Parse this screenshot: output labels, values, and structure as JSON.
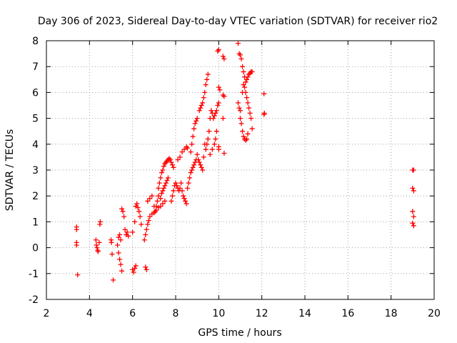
{
  "chart_data": {
    "type": "scatter",
    "title": "Day 306 of 2023, Sidereal Day-to-day VTEC variation (SDTVAR) for receiver rio2",
    "xlabel": "GPS time / hours",
    "ylabel": "SDTVAR / TECUs",
    "xlim": [
      2,
      20
    ],
    "ylim": [
      -2,
      8
    ],
    "xticks": [
      "2",
      "4",
      "6",
      "8",
      "10",
      "12",
      "14",
      "16",
      "18",
      "20"
    ],
    "yticks": [
      "-2",
      "-1",
      "0",
      "1",
      "2",
      "3",
      "4",
      "5",
      "6",
      "7",
      "8"
    ],
    "grid": true,
    "marker": "plus",
    "color": "#ff0000",
    "series": [
      {
        "name": "SDTVAR",
        "points": [
          [
            3.4,
            0.8
          ],
          [
            3.4,
            0.7
          ],
          [
            3.4,
            0.2
          ],
          [
            3.4,
            0.1
          ],
          [
            3.45,
            -1.05
          ],
          [
            4.3,
            0.3
          ],
          [
            4.32,
            0.1
          ],
          [
            4.35,
            0.0
          ],
          [
            4.38,
            -0.1
          ],
          [
            4.4,
            -0.15
          ],
          [
            4.45,
            0.2
          ],
          [
            4.48,
            0.9
          ],
          [
            4.5,
            1.0
          ],
          [
            5.0,
            0.3
          ],
          [
            5.02,
            0.2
          ],
          [
            5.05,
            -0.25
          ],
          [
            5.1,
            -1.25
          ],
          [
            5.3,
            0.1
          ],
          [
            5.35,
            -0.2
          ],
          [
            5.4,
            -0.45
          ],
          [
            5.45,
            -0.65
          ],
          [
            5.5,
            -0.9
          ],
          [
            5.35,
            0.4
          ],
          [
            5.4,
            0.5
          ],
          [
            5.45,
            0.3
          ],
          [
            5.5,
            1.5
          ],
          [
            5.55,
            1.4
          ],
          [
            5.6,
            1.2
          ],
          [
            5.65,
            0.7
          ],
          [
            5.7,
            0.5
          ],
          [
            5.75,
            0.6
          ],
          [
            5.8,
            0.45
          ],
          [
            6.0,
            -0.85
          ],
          [
            6.05,
            -0.95
          ],
          [
            6.1,
            -0.8
          ],
          [
            6.15,
            -0.7
          ],
          [
            6.0,
            0.6
          ],
          [
            6.1,
            1.0
          ],
          [
            6.15,
            1.6
          ],
          [
            6.2,
            1.7
          ],
          [
            6.25,
            1.55
          ],
          [
            6.3,
            1.4
          ],
          [
            6.35,
            1.2
          ],
          [
            6.4,
            0.9
          ],
          [
            6.6,
            -0.75
          ],
          [
            6.65,
            -0.85
          ],
          [
            6.55,
            0.3
          ],
          [
            6.6,
            0.5
          ],
          [
            6.65,
            0.7
          ],
          [
            6.7,
            0.9
          ],
          [
            6.75,
            1.05
          ],
          [
            6.7,
            1.8
          ],
          [
            6.8,
            1.9
          ],
          [
            6.9,
            2.0
          ],
          [
            7.0,
            1.6
          ],
          [
            7.05,
            1.4
          ],
          [
            7.1,
            1.6
          ],
          [
            7.15,
            1.8
          ],
          [
            7.2,
            2.0
          ],
          [
            6.8,
            1.2
          ],
          [
            6.9,
            1.3
          ],
          [
            7.0,
            1.35
          ],
          [
            7.1,
            1.45
          ],
          [
            7.2,
            1.55
          ],
          [
            7.3,
            1.6
          ],
          [
            7.4,
            1.7
          ],
          [
            7.5,
            1.8
          ],
          [
            7.2,
            2.3
          ],
          [
            7.25,
            2.5
          ],
          [
            7.3,
            2.7
          ],
          [
            7.35,
            2.9
          ],
          [
            7.4,
            3.0
          ],
          [
            7.45,
            3.15
          ],
          [
            7.5,
            3.25
          ],
          [
            7.55,
            3.3
          ],
          [
            7.6,
            3.35
          ],
          [
            7.65,
            3.4
          ],
          [
            7.7,
            3.45
          ],
          [
            7.75,
            3.4
          ],
          [
            7.8,
            3.3
          ],
          [
            7.85,
            3.2
          ],
          [
            7.9,
            3.1
          ],
          [
            7.3,
            1.9
          ],
          [
            7.35,
            2.1
          ],
          [
            7.4,
            2.2
          ],
          [
            7.45,
            2.3
          ],
          [
            7.5,
            2.4
          ],
          [
            7.55,
            2.5
          ],
          [
            7.6,
            2.6
          ],
          [
            7.65,
            2.7
          ],
          [
            7.8,
            1.8
          ],
          [
            7.85,
            2.0
          ],
          [
            7.9,
            2.2
          ],
          [
            7.95,
            2.4
          ],
          [
            8.0,
            2.5
          ],
          [
            8.05,
            2.4
          ],
          [
            8.1,
            2.3
          ],
          [
            8.15,
            2.2
          ],
          [
            8.2,
            2.3
          ],
          [
            8.25,
            2.5
          ],
          [
            8.3,
            2.2
          ],
          [
            8.35,
            2.0
          ],
          [
            8.4,
            1.9
          ],
          [
            8.45,
            1.8
          ],
          [
            8.5,
            1.7
          ],
          [
            8.55,
            2.3
          ],
          [
            8.1,
            3.4
          ],
          [
            8.2,
            3.5
          ],
          [
            8.3,
            3.7
          ],
          [
            8.4,
            3.8
          ],
          [
            8.5,
            3.9
          ],
          [
            8.55,
            3.85
          ],
          [
            8.6,
            2.5
          ],
          [
            8.65,
            2.7
          ],
          [
            8.7,
            2.9
          ],
          [
            8.75,
            3.0
          ],
          [
            8.8,
            3.1
          ],
          [
            8.85,
            3.2
          ],
          [
            8.9,
            3.3
          ],
          [
            8.95,
            3.4
          ],
          [
            8.7,
            3.7
          ],
          [
            8.75,
            4.0
          ],
          [
            8.8,
            4.3
          ],
          [
            8.85,
            4.6
          ],
          [
            8.9,
            4.8
          ],
          [
            8.95,
            4.9
          ],
          [
            9.0,
            5.0
          ],
          [
            9.0,
            3.6
          ],
          [
            9.05,
            3.4
          ],
          [
            9.1,
            3.3
          ],
          [
            9.15,
            3.2
          ],
          [
            9.2,
            3.1
          ],
          [
            9.25,
            3.0
          ],
          [
            9.3,
            3.5
          ],
          [
            9.35,
            4.0
          ],
          [
            9.1,
            5.3
          ],
          [
            9.15,
            5.4
          ],
          [
            9.2,
            5.5
          ],
          [
            9.25,
            5.6
          ],
          [
            9.3,
            5.8
          ],
          [
            9.35,
            6.0
          ],
          [
            9.4,
            6.3
          ],
          [
            9.45,
            6.5
          ],
          [
            9.5,
            6.7
          ],
          [
            9.4,
            3.8
          ],
          [
            9.45,
            4.0
          ],
          [
            9.5,
            4.2
          ],
          [
            9.55,
            4.5
          ],
          [
            9.6,
            5.0
          ],
          [
            9.65,
            5.3
          ],
          [
            9.7,
            5.2
          ],
          [
            9.75,
            5.0
          ],
          [
            9.6,
            3.6
          ],
          [
            9.7,
            3.8
          ],
          [
            9.8,
            4.0
          ],
          [
            9.85,
            4.2
          ],
          [
            9.9,
            4.5
          ],
          [
            9.8,
            5.1
          ],
          [
            9.85,
            5.2
          ],
          [
            9.9,
            5.3
          ],
          [
            9.95,
            5.5
          ],
          [
            10.0,
            5.6
          ],
          [
            9.95,
            7.6
          ],
          [
            10.0,
            7.65
          ],
          [
            10.0,
            6.2
          ],
          [
            10.05,
            6.1
          ],
          [
            10.0,
            3.8
          ],
          [
            10.0,
            3.9
          ],
          [
            10.2,
            7.4
          ],
          [
            10.25,
            7.3
          ],
          [
            10.2,
            5.9
          ],
          [
            10.25,
            5.85
          ],
          [
            10.2,
            5.0
          ],
          [
            10.25,
            3.65
          ],
          [
            10.9,
            7.9
          ],
          [
            10.95,
            7.5
          ],
          [
            11.0,
            7.45
          ],
          [
            11.05,
            7.3
          ],
          [
            11.1,
            7.0
          ],
          [
            11.15,
            6.8
          ],
          [
            11.2,
            6.6
          ],
          [
            11.25,
            6.4
          ],
          [
            11.3,
            6.5
          ],
          [
            11.35,
            6.6
          ],
          [
            11.4,
            6.7
          ],
          [
            11.45,
            6.75
          ],
          [
            11.5,
            6.8
          ],
          [
            11.55,
            6.8
          ],
          [
            11.2,
            6.2
          ],
          [
            11.25,
            6.0
          ],
          [
            11.3,
            5.8
          ],
          [
            11.35,
            5.6
          ],
          [
            11.4,
            5.4
          ],
          [
            11.45,
            5.2
          ],
          [
            11.5,
            5.0
          ],
          [
            11.55,
            4.6
          ],
          [
            11.0,
            5.0
          ],
          [
            11.05,
            4.8
          ],
          [
            11.1,
            4.5
          ],
          [
            11.15,
            4.3
          ],
          [
            11.2,
            4.2
          ],
          [
            11.25,
            4.15
          ],
          [
            11.3,
            4.2
          ],
          [
            11.35,
            4.4
          ],
          [
            10.9,
            5.6
          ],
          [
            10.95,
            5.4
          ],
          [
            11.0,
            5.3
          ],
          [
            11.1,
            6.0
          ],
          [
            11.15,
            6.3
          ],
          [
            12.1,
            5.95
          ],
          [
            12.1,
            5.15
          ],
          [
            12.12,
            5.2
          ],
          [
            19.0,
            3.0
          ],
          [
            19.05,
            3.0
          ],
          [
            19.0,
            2.3
          ],
          [
            19.05,
            2.2
          ],
          [
            19.0,
            1.4
          ],
          [
            19.05,
            1.2
          ],
          [
            19.0,
            0.95
          ],
          [
            19.05,
            0.85
          ]
        ]
      }
    ]
  }
}
